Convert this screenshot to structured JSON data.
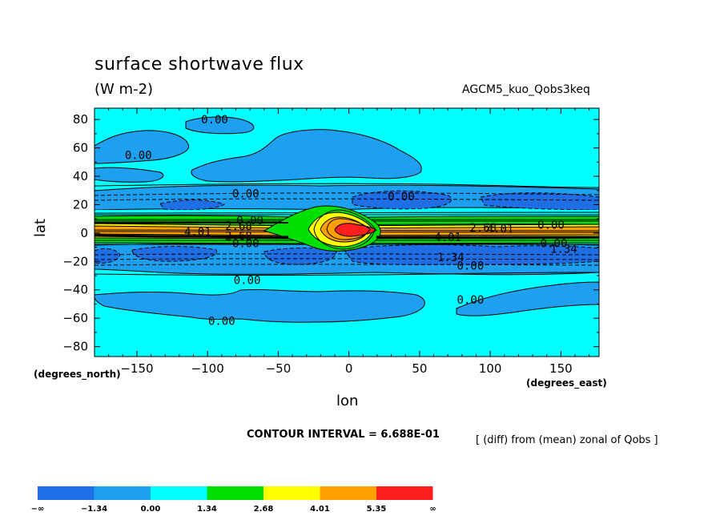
{
  "chart_data": {
    "type": "heatmap",
    "title": "surface shortwave flux",
    "units": "(W m-2)",
    "model": "AGCM5_kuo_Qobs3keq",
    "xlabel": "lon",
    "ylabel": "lat",
    "x_unit": "(degrees_east)",
    "y_unit": "(degrees_north)",
    "xlim": [
      -180,
      177
    ],
    "ylim": [
      -87,
      88
    ],
    "xticks": [
      -150,
      -100,
      -50,
      0,
      50,
      100,
      150
    ],
    "xtick_labels": [
      "−150",
      "−100",
      "−50",
      "0",
      "50",
      "100",
      "150"
    ],
    "yticks": [
      80,
      60,
      40,
      20,
      0,
      -20,
      -40,
      -60,
      -80
    ],
    "ytick_labels": [
      "80",
      "60",
      "40",
      "20",
      "0",
      "−20",
      "−40",
      "−60",
      "−80"
    ],
    "contour_interval": "CONTOUR INTERVAL = 6.688E-01",
    "note": "[ (diff) from (mean) zonal of Qobs ]",
    "colorbar": {
      "colors": [
        "#1e6ee6",
        "#1ea0f0",
        "#00ffff",
        "#00e000",
        "#ffff00",
        "#ffa000",
        "#ff1e1e"
      ],
      "labels": [
        "−∞",
        "−1.34",
        "0.00",
        "1.34",
        "2.68",
        "4.01",
        "5.35",
        "∞"
      ]
    },
    "contour_labels": [
      {
        "text": "0.00",
        "lon": -95,
        "lat": 80
      },
      {
        "text": "0.00",
        "lon": -149,
        "lat": 55
      },
      {
        "text": "0.00",
        "lon": -73,
        "lat": 28
      },
      {
        "text": "0.00",
        "lon": 37,
        "lat": 26
      },
      {
        "text": "0.00",
        "lon": -70,
        "lat": 9
      },
      {
        "text": "2.68",
        "lon": -78,
        "lat": 5
      },
      {
        "text": "4.01",
        "lon": -107,
        "lat": 1
      },
      {
        "text": "2.68",
        "lon": -78,
        "lat": -2
      },
      {
        "text": "0.00",
        "lon": -73,
        "lat": -7
      },
      {
        "text": "2.68",
        "lon": 95,
        "lat": 4
      },
      {
        "text": "4.01",
        "lon": 107,
        "lat": 3
      },
      {
        "text": "0.00",
        "lon": 143,
        "lat": 6
      },
      {
        "text": "4.01",
        "lon": 70,
        "lat": -3
      },
      {
        "text": "0.00",
        "lon": 145,
        "lat": -7
      },
      {
        "text": "1.34",
        "lon": 152,
        "lat": -11
      },
      {
        "text": "1.34",
        "lon": 72,
        "lat": -17
      },
      {
        "text": "0.00",
        "lon": 86,
        "lat": -23
      },
      {
        "text": "0.00",
        "lon": -72,
        "lat": -33
      },
      {
        "text": "0.00",
        "lon": 86,
        "lat": -47
      },
      {
        "text": "0.00",
        "lon": -90,
        "lat": -62
      }
    ]
  }
}
